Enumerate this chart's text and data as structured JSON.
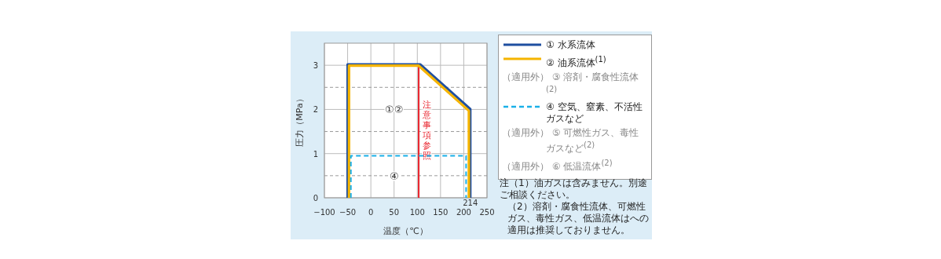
{
  "chart_data": {
    "type": "line",
    "xlabel": "温度（℃）",
    "ylabel": "圧力（MPa）",
    "xlim": [
      -100,
      250
    ],
    "ylim": [
      0,
      3.5
    ],
    "xticks": [
      -100,
      -50,
      0,
      50,
      100,
      150,
      200,
      250
    ],
    "yticks": [
      0,
      {
        "value": 0.5,
        "label": null
      },
      1,
      {
        "value": 1.5,
        "label": null
      },
      2,
      {
        "value": 2.5,
        "label": null
      },
      3
    ],
    "grid": true,
    "legend": "right",
    "series": [
      {
        "name": "① 水系流体",
        "color": "#1f4fa0",
        "x": [
          -50,
          -50,
          106,
          214,
          214
        ],
        "values": [
          0,
          3.02,
          3.02,
          2.01,
          0
        ]
      },
      {
        "name": "② 油系流体$^{(1)}$",
        "color": "#f5b400",
        "x": [
          -47,
          -47,
          103,
          211,
          211
        ],
        "values": [
          0,
          2.99,
          2.99,
          1.97,
          0
        ]
      },
      {
        "name": "④ 空気、窒素、不活性ガスなど",
        "color": "#1ab0e8",
        "line_style": "dashed",
        "x": [
          -43,
          -43,
          205,
          205
        ],
        "values": [
          0,
          0.95,
          0.95,
          0
        ]
      }
    ],
    "ref_lines": [
      {
        "axis": "x",
        "value": 103,
        "label": "注意事項参照",
        "color": "#e8202a"
      }
    ],
    "annotations": [
      "①②",
      "④",
      {
        "text": "214",
        "x": 214,
        "y": 0
      },
      "（適用外） ③ 溶剤・腐食性流体$^{(2)}$",
      "（適用外） ⑤ 可燃性ガス、毒性ガスなど$^{(2)}$",
      "（適用外） ⑥ 低温流体$^{(2)}$",
      "注（1）油ガスは含みません。別途ご相談ください。",
      "（2）溶剤・腐食性流体、可燃性ガス、毒性ガス、低温流体はへの適用は推奨しておりません。"
    ]
  }
}
